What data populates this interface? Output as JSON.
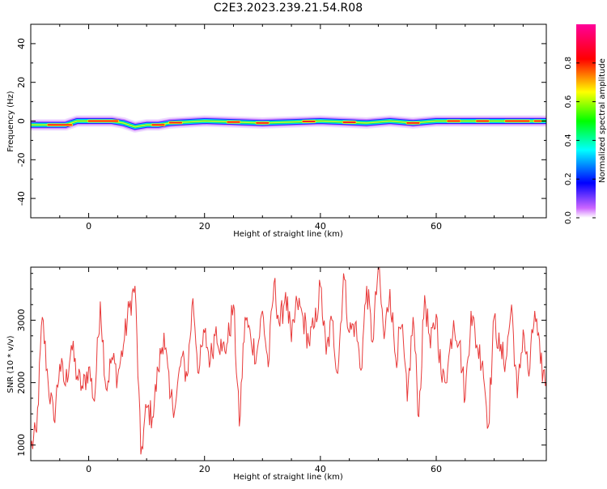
{
  "title": "C2E3.2023.239.21.54.R08",
  "chart_data": [
    {
      "type": "heatmap",
      "xlabel": "Height of straight line (km)",
      "ylabel": "Frequency (Hz)",
      "xlim": [
        -10,
        79
      ],
      "ylim": [
        -50,
        50
      ],
      "xticks": [
        0,
        20,
        40,
        60
      ],
      "yticks": [
        -40,
        -20,
        0,
        20,
        40
      ],
      "colorbar": {
        "label": "Normalized spectral amplitude",
        "range": [
          0,
          1
        ],
        "ticks": [
          0.0,
          0.2,
          0.4,
          0.6,
          0.8
        ],
        "colors": [
          "#ffffff",
          "#cc66ff",
          "#0000ff",
          "#00ffff",
          "#00ff00",
          "#ffff00",
          "#ff0000",
          "#ff0099"
        ]
      },
      "ridge": {
        "x": [
          -10,
          -4,
          -2,
          0,
          4,
          6,
          8,
          10,
          12,
          14,
          20,
          30,
          40,
          48,
          52,
          56,
          60,
          70,
          79
        ],
        "y": [
          -2,
          -2,
          0,
          0,
          0,
          -1,
          -3,
          -2,
          -2,
          -1,
          0,
          -1,
          0,
          -1,
          0,
          -1,
          0,
          0,
          0
        ]
      },
      "hot_segments": [
        [
          -7,
          -3
        ],
        [
          0,
          5
        ],
        [
          11,
          13
        ],
        [
          14,
          16
        ],
        [
          24,
          26
        ],
        [
          29,
          31
        ],
        [
          37,
          39
        ],
        [
          44,
          46
        ],
        [
          55,
          57
        ],
        [
          62,
          64
        ],
        [
          67,
          69
        ],
        [
          72,
          76
        ],
        [
          77,
          78
        ]
      ]
    },
    {
      "type": "line",
      "xlabel": "Height of straight line (km)",
      "ylabel": "SNR (10 * v/v)",
      "xlim": [
        -10,
        79
      ],
      "ylim": [
        750,
        3850
      ],
      "xticks": [
        0,
        20,
        40,
        60
      ],
      "yticks": [
        1000,
        2000,
        3000
      ],
      "color": "#e83a3a",
      "series": [
        {
          "x": [
            -10,
            -9,
            -8,
            -7,
            -6,
            -5,
            -4,
            -3,
            -2,
            -1,
            0,
            1,
            2,
            3,
            4,
            5,
            6,
            7,
            8,
            9,
            10,
            11,
            12,
            13,
            14,
            15,
            16,
            17,
            18,
            19,
            20,
            21,
            22,
            23,
            24,
            25,
            26,
            27,
            28,
            29,
            30,
            31,
            32,
            33,
            34,
            35,
            36,
            37,
            38,
            39,
            40,
            41,
            42,
            43,
            44,
            45,
            46,
            47,
            48,
            49,
            50,
            51,
            52,
            53,
            54,
            55,
            56,
            57,
            58,
            59,
            60,
            61,
            62,
            63,
            64,
            65,
            66,
            67,
            68,
            69,
            70,
            71,
            72,
            73,
            74,
            75,
            76,
            77,
            78,
            79
          ],
          "y": [
            950,
            1200,
            3050,
            2000,
            1400,
            2300,
            1950,
            2600,
            2100,
            1900,
            2250,
            1700,
            3300,
            1900,
            2400,
            2100,
            2600,
            3200,
            3550,
            850,
            1600,
            1450,
            2200,
            2800,
            1750,
            1650,
            2400,
            2100,
            3350,
            2150,
            2800,
            2350,
            2900,
            2500,
            2650,
            3250,
            1300,
            3050,
            2700,
            2450,
            3150,
            2250,
            3600,
            2900,
            3450,
            2650,
            3300,
            3050,
            2650,
            2900,
            3550,
            2450,
            3000,
            2150,
            3750,
            2800,
            2950,
            2200,
            3550,
            2650,
            3850,
            2700,
            3500,
            2400,
            2900,
            1700,
            3050,
            1450,
            3400,
            2550,
            3100,
            2000,
            2250,
            3000,
            2650,
            1750,
            3150,
            2600,
            2350,
            1300,
            3050,
            2500,
            2350,
            3250,
            1750,
            2850,
            2100,
            3150,
            2300,
            2000
          ]
        }
      ]
    }
  ]
}
